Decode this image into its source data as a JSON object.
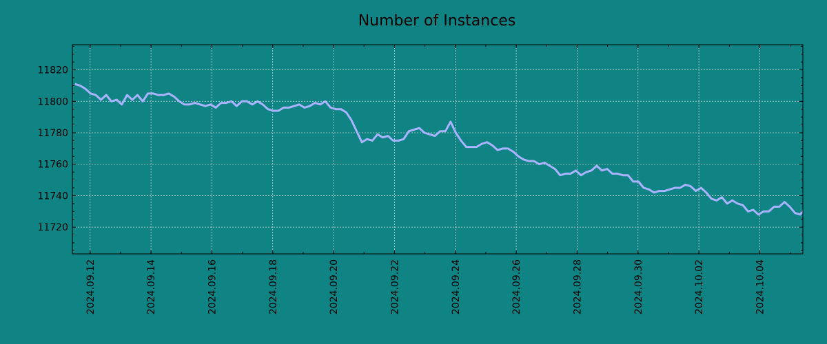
{
  "chart_data": {
    "type": "line",
    "title": "Number of Instances",
    "xlabel": "",
    "ylabel": "",
    "x_start": "2024.09.11 12:00",
    "x_end": "2024.10.05 12:00",
    "xlim": [
      "2024.09.11 10:00",
      "2024.10.05 10:00"
    ],
    "ylim": [
      11703,
      11836
    ],
    "y_ticks": [
      11720,
      11740,
      11760,
      11780,
      11800,
      11820
    ],
    "x_ticks": [
      "2024.09.12",
      "2024.09.14",
      "2024.09.16",
      "2024.09.18",
      "2024.09.20",
      "2024.09.22",
      "2024.09.24",
      "2024.09.26",
      "2024.09.28",
      "2024.09.30",
      "2024.10.02",
      "2024.10.04"
    ],
    "grid": true,
    "colors": {
      "background": "#108385",
      "line": "#a9b4ff",
      "grid": "#c8d8d8",
      "axis": "#000000"
    },
    "series": [
      {
        "values": [
          11811,
          11810,
          11808,
          11805,
          11804,
          11801,
          11804,
          11800,
          11801,
          11798,
          11804,
          11801,
          11804,
          11800,
          11805,
          11805,
          11804,
          11804,
          11805,
          11803,
          11800,
          11798,
          11798,
          11799,
          11798,
          11797,
          11798,
          11796,
          11799,
          11799,
          11800,
          11797,
          11800,
          11800,
          11798,
          11800,
          11798,
          11795,
          11794,
          11794,
          11796,
          11796,
          11797,
          11798,
          11796,
          11797,
          11799,
          11798,
          11800,
          11796,
          11795,
          11795,
          11793,
          11788,
          11781,
          11774,
          11776,
          11775,
          11779,
          11777,
          11778,
          11775,
          11775,
          11776,
          11781,
          11782,
          11783,
          11780,
          11779,
          11778,
          11781,
          11781,
          11787,
          11780,
          11775,
          11771,
          11771,
          11771,
          11773,
          11774,
          11772,
          11769,
          11770,
          11770,
          11768,
          11765,
          11763,
          11762,
          11762,
          11760,
          11761,
          11759,
          11757,
          11753,
          11754,
          11754,
          11756,
          11753,
          11755,
          11756,
          11759,
          11756,
          11757,
          11754,
          11754,
          11753,
          11753,
          11749,
          11749,
          11745,
          11744,
          11742,
          11743,
          11743,
          11744,
          11745,
          11745,
          11747,
          11746,
          11743,
          11745,
          11742,
          11738,
          11737,
          11739,
          11735,
          11737,
          11735,
          11734,
          11730,
          11731,
          11728,
          11730,
          11730,
          11733,
          11733,
          11736,
          11733,
          11729,
          11728,
          11732
        ]
      }
    ]
  }
}
